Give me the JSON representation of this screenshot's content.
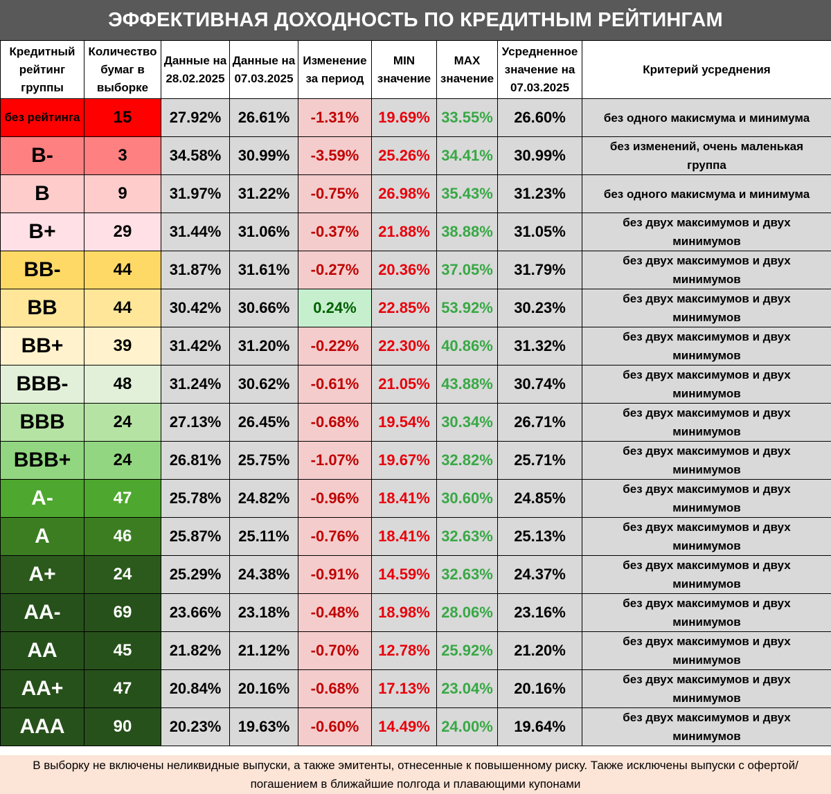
{
  "title": "ЭФФЕКТИВНАЯ ДОХОДНОСТЬ ПО КРЕДИТНЫМ РЕЙТИНГАМ",
  "headers": [
    "Кредитный рейтинг группы",
    "Количество бумаг в выборке",
    "Данные на 28.02.2025",
    "Данные на 07.03.2025",
    "Изменение за период",
    "MIN значение",
    "MAX значение",
    "Усредненное значение на 07.03.2025",
    "Критерий усреднения"
  ],
  "rows": [
    {
      "rating": "без рейтинга",
      "count": "15",
      "d1": "27.92%",
      "d2": "26.61%",
      "chg": "-1.31%",
      "min": "19.69%",
      "max": "33.55%",
      "avg": "26.60%",
      "crit": "без одного макисмума и минимума",
      "bg": "#ff0000",
      "fg": "#000000"
    },
    {
      "rating": "B-",
      "count": "3",
      "d1": "34.58%",
      "d2": "30.99%",
      "chg": "-3.59%",
      "min": "25.26%",
      "max": "34.41%",
      "avg": "30.99%",
      "crit": "без изменений, очень маленькая группа",
      "bg": "#ff8080",
      "fg": "#000000"
    },
    {
      "rating": "B",
      "count": "9",
      "d1": "31.97%",
      "d2": "31.22%",
      "chg": "-0.75%",
      "min": "26.98%",
      "max": "35.43%",
      "avg": "31.23%",
      "crit": "без одного макисмума и минимума",
      "bg": "#ffcccc",
      "fg": "#000000"
    },
    {
      "rating": "B+",
      "count": "29",
      "d1": "31.44%",
      "d2": "31.06%",
      "chg": "-0.37%",
      "min": "21.88%",
      "max": "38.88%",
      "avg": "31.05%",
      "crit": "без двух максимумов и двух минимумов",
      "bg": "#ffe0e6",
      "fg": "#000000"
    },
    {
      "rating": "BB-",
      "count": "44",
      "d1": "31.87%",
      "d2": "31.61%",
      "chg": "-0.27%",
      "min": "20.36%",
      "max": "37.05%",
      "avg": "31.79%",
      "crit": "без двух максимумов и двух минимумов",
      "bg": "#ffd966",
      "fg": "#000000"
    },
    {
      "rating": "BB",
      "count": "44",
      "d1": "30.42%",
      "d2": "30.66%",
      "chg": "0.24%",
      "min": "22.85%",
      "max": "53.92%",
      "avg": "30.23%",
      "crit": "без двух максимумов и двух минимумов",
      "bg": "#ffe699",
      "fg": "#000000"
    },
    {
      "rating": "BB+",
      "count": "39",
      "d1": "31.42%",
      "d2": "31.20%",
      "chg": "-0.22%",
      "min": "22.30%",
      "max": "40.86%",
      "avg": "31.32%",
      "crit": "без двух максимумов и двух минимумов",
      "bg": "#fff2cc",
      "fg": "#000000"
    },
    {
      "rating": "BBB-",
      "count": "48",
      "d1": "31.24%",
      "d2": "30.62%",
      "chg": "-0.61%",
      "min": "21.05%",
      "max": "43.88%",
      "avg": "30.74%",
      "crit": "без двух максимумов и двух минимумов",
      "bg": "#e2f0d9",
      "fg": "#000000"
    },
    {
      "rating": "BBB",
      "count": "24",
      "d1": "27.13%",
      "d2": "26.45%",
      "chg": "-0.68%",
      "min": "19.54%",
      "max": "30.34%",
      "avg": "26.71%",
      "crit": "без двух максимумов и двух минимумов",
      "bg": "#b5e3a4",
      "fg": "#000000"
    },
    {
      "rating": "BBB+",
      "count": "24",
      "d1": "26.81%",
      "d2": "25.75%",
      "chg": "-1.07%",
      "min": "19.67%",
      "max": "32.82%",
      "avg": "25.71%",
      "crit": "без двух максимумов и двух минимумов",
      "bg": "#92d681",
      "fg": "#000000"
    },
    {
      "rating": "A-",
      "count": "47",
      "d1": "25.78%",
      "d2": "24.82%",
      "chg": "-0.96%",
      "min": "18.41%",
      "max": "30.60%",
      "avg": "24.85%",
      "crit": "без двух максимумов и двух минимумов",
      "bg": "#4ea72e",
      "fg": "#ffffff"
    },
    {
      "rating": "A",
      "count": "46",
      "d1": "25.87%",
      "d2": "25.11%",
      "chg": "-0.76%",
      "min": "18.41%",
      "max": "32.63%",
      "avg": "25.13%",
      "crit": "без двух максимумов и двух минимумов",
      "bg": "#3c7d22",
      "fg": "#ffffff"
    },
    {
      "rating": "A+",
      "count": "24",
      "d1": "25.29%",
      "d2": "24.38%",
      "chg": "-0.91%",
      "min": "14.59%",
      "max": "32.63%",
      "avg": "24.37%",
      "crit": "без двух максимумов и двух минимумов",
      "bg": "#2b5a1c",
      "fg": "#ffffff"
    },
    {
      "rating": "AA-",
      "count": "69",
      "d1": "23.66%",
      "d2": "23.18%",
      "chg": "-0.48%",
      "min": "18.98%",
      "max": "28.06%",
      "avg": "23.16%",
      "crit": "без двух максимумов и двух минимумов",
      "bg": "#27511b",
      "fg": "#ffffff"
    },
    {
      "rating": "AA",
      "count": "45",
      "d1": "21.82%",
      "d2": "21.12%",
      "chg": "-0.70%",
      "min": "12.78%",
      "max": "25.92%",
      "avg": "21.20%",
      "crit": "без двух максимумов и двух минимумов",
      "bg": "#27511b",
      "fg": "#ffffff"
    },
    {
      "rating": "AA+",
      "count": "47",
      "d1": "20.84%",
      "d2": "20.16%",
      "chg": "-0.68%",
      "min": "17.13%",
      "max": "23.04%",
      "avg": "20.16%",
      "crit": "без двух максимумов и двух минимумов",
      "bg": "#27511b",
      "fg": "#ffffff"
    },
    {
      "rating": "AAA",
      "count": "90",
      "d1": "20.23%",
      "d2": "19.63%",
      "chg": "-0.60%",
      "min": "14.49%",
      "max": "24.00%",
      "avg": "19.64%",
      "crit": "без двух максимумов и двух минимумов",
      "bg": "#27511b",
      "fg": "#ffffff"
    }
  ],
  "footer": "В выборку не включены неликвидные выпуски, а также эмитенты, отнесенные к повышенному риску. Также исключены выпуски с офертой/погашением в ближайшие полгода и плавающими купонами",
  "colors": {
    "title_bg": "#595959",
    "change_neg_bg": "#f4cccc",
    "change_pos_bg": "#c6efce",
    "min_text": "#e8000b",
    "max_text": "#38a845",
    "footer_bg": "#fce4d6"
  }
}
